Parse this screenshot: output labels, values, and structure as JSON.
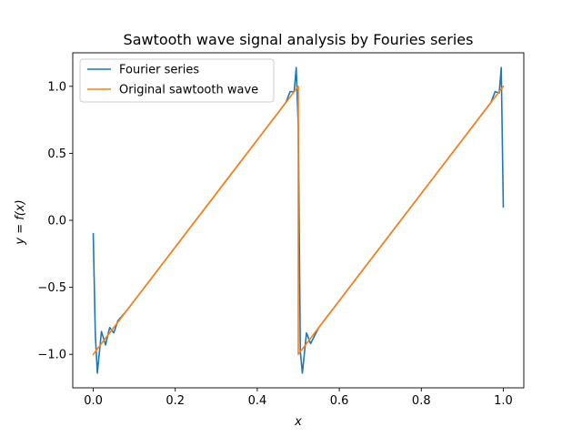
{
  "chart_data": {
    "type": "line",
    "title": "Sawtooth wave signal analysis by Fouries series",
    "xlabel": "x",
    "ylabel": "y = f(x)",
    "xlim": [
      -0.05,
      1.05
    ],
    "ylim": [
      -1.25,
      1.25
    ],
    "xticks": [
      0.0,
      0.2,
      0.4,
      0.6,
      0.8,
      1.0
    ],
    "xtick_labels": [
      "0.0",
      "0.2",
      "0.4",
      "0.6",
      "0.8",
      "1.0"
    ],
    "yticks": [
      -1.0,
      -0.5,
      0.0,
      0.5,
      1.0
    ],
    "ytick_labels": [
      "−1.0",
      "−0.5",
      "0.0",
      "0.5",
      "1.0"
    ],
    "grid": false,
    "legend_position": "top-left",
    "series": [
      {
        "name": "Fourier series",
        "color": "#1f77b4",
        "x": [
          0.0,
          0.005,
          0.01,
          0.02,
          0.03,
          0.04,
          0.05,
          0.06,
          0.08,
          0.1,
          0.2,
          0.3,
          0.4,
          0.45,
          0.47,
          0.48,
          0.49,
          0.495,
          0.5,
          0.505,
          0.51,
          0.52,
          0.53,
          0.55,
          0.6,
          0.7,
          0.8,
          0.9,
          0.95,
          0.97,
          0.98,
          0.99,
          0.995,
          1.0
        ],
        "y": [
          -0.1,
          -0.85,
          -1.14,
          -0.83,
          -0.93,
          -0.8,
          -0.84,
          -0.75,
          -0.68,
          -0.6,
          -0.2,
          0.2,
          0.6,
          0.8,
          0.88,
          0.96,
          0.96,
          1.14,
          0.7,
          -0.98,
          -1.14,
          -0.84,
          -0.92,
          -0.8,
          -0.6,
          -0.2,
          0.2,
          0.6,
          0.8,
          0.88,
          0.96,
          0.95,
          1.14,
          0.1
        ]
      },
      {
        "name": "Original sawtooth wave",
        "color": "#ff7f0e",
        "x": [
          0.0,
          0.5,
          0.5,
          1.0
        ],
        "y": [
          -1.0,
          1.0,
          -1.0,
          1.0
        ]
      }
    ]
  }
}
